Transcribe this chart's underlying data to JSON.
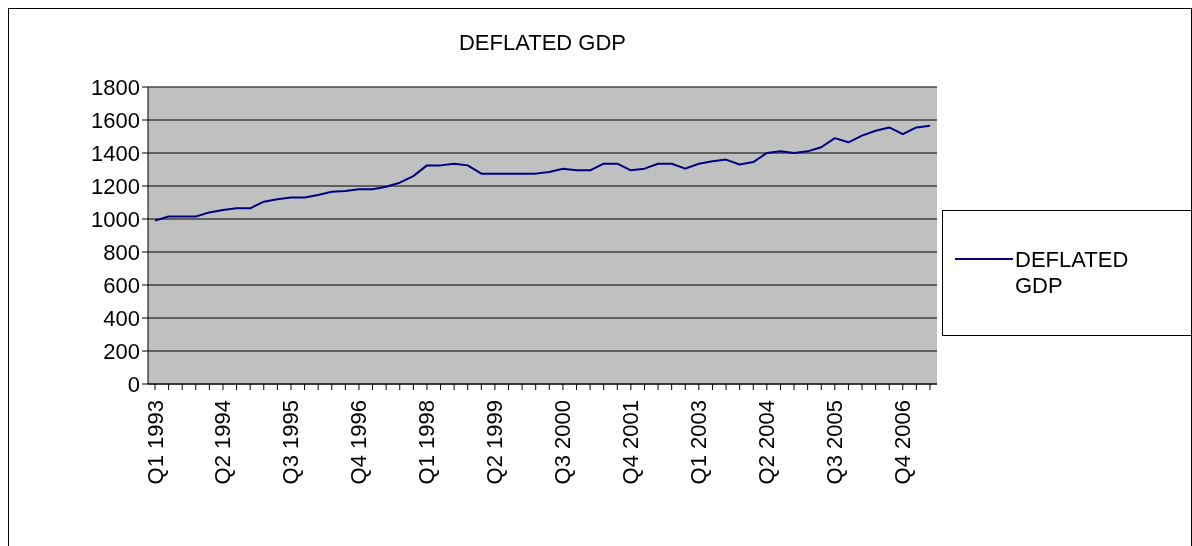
{
  "chart_data": {
    "type": "line",
    "title": "DEFLATED GDP",
    "categories": [
      "Q1 1993",
      null,
      null,
      null,
      null,
      "Q2 1994",
      null,
      null,
      null,
      null,
      "Q3 1995",
      null,
      null,
      null,
      null,
      "Q4 1996",
      null,
      null,
      null,
      null,
      "Q1 1998",
      null,
      null,
      null,
      null,
      "Q2 1999",
      null,
      null,
      null,
      null,
      "Q3 2000",
      null,
      null,
      null,
      null,
      "Q4 2001",
      null,
      null,
      null,
      null,
      "Q1 2003",
      null,
      null,
      null,
      null,
      "Q2 2004",
      null,
      null,
      null,
      null,
      "Q3 2005",
      null,
      null,
      null,
      null,
      "Q4 2006",
      null,
      null
    ],
    "series": [
      {
        "name": "DEFLATED GDP",
        "color": "#000080",
        "values": [
          990,
          1015,
          1015,
          1015,
          1040,
          1055,
          1065,
          1065,
          1105,
          1120,
          1130,
          1130,
          1145,
          1165,
          1170,
          1180,
          1180,
          1195,
          1220,
          1260,
          1325,
          1325,
          1335,
          1325,
          1275,
          1275,
          1275,
          1275,
          1275,
          1285,
          1305,
          1295,
          1295,
          1335,
          1335,
          1295,
          1305,
          1335,
          1335,
          1305,
          1335,
          1350,
          1360,
          1330,
          1345,
          1400,
          1410,
          1400,
          1410,
          1435,
          1490,
          1465,
          1505,
          1535,
          1555,
          1515,
          1555,
          1565
        ]
      }
    ],
    "ylim": [
      0,
      1800
    ],
    "yticks": [
      0,
      200,
      400,
      600,
      800,
      1000,
      1200,
      1400,
      1600,
      1800
    ],
    "grid": "y",
    "legend": "right",
    "marker": "none",
    "line_style": "solid"
  }
}
